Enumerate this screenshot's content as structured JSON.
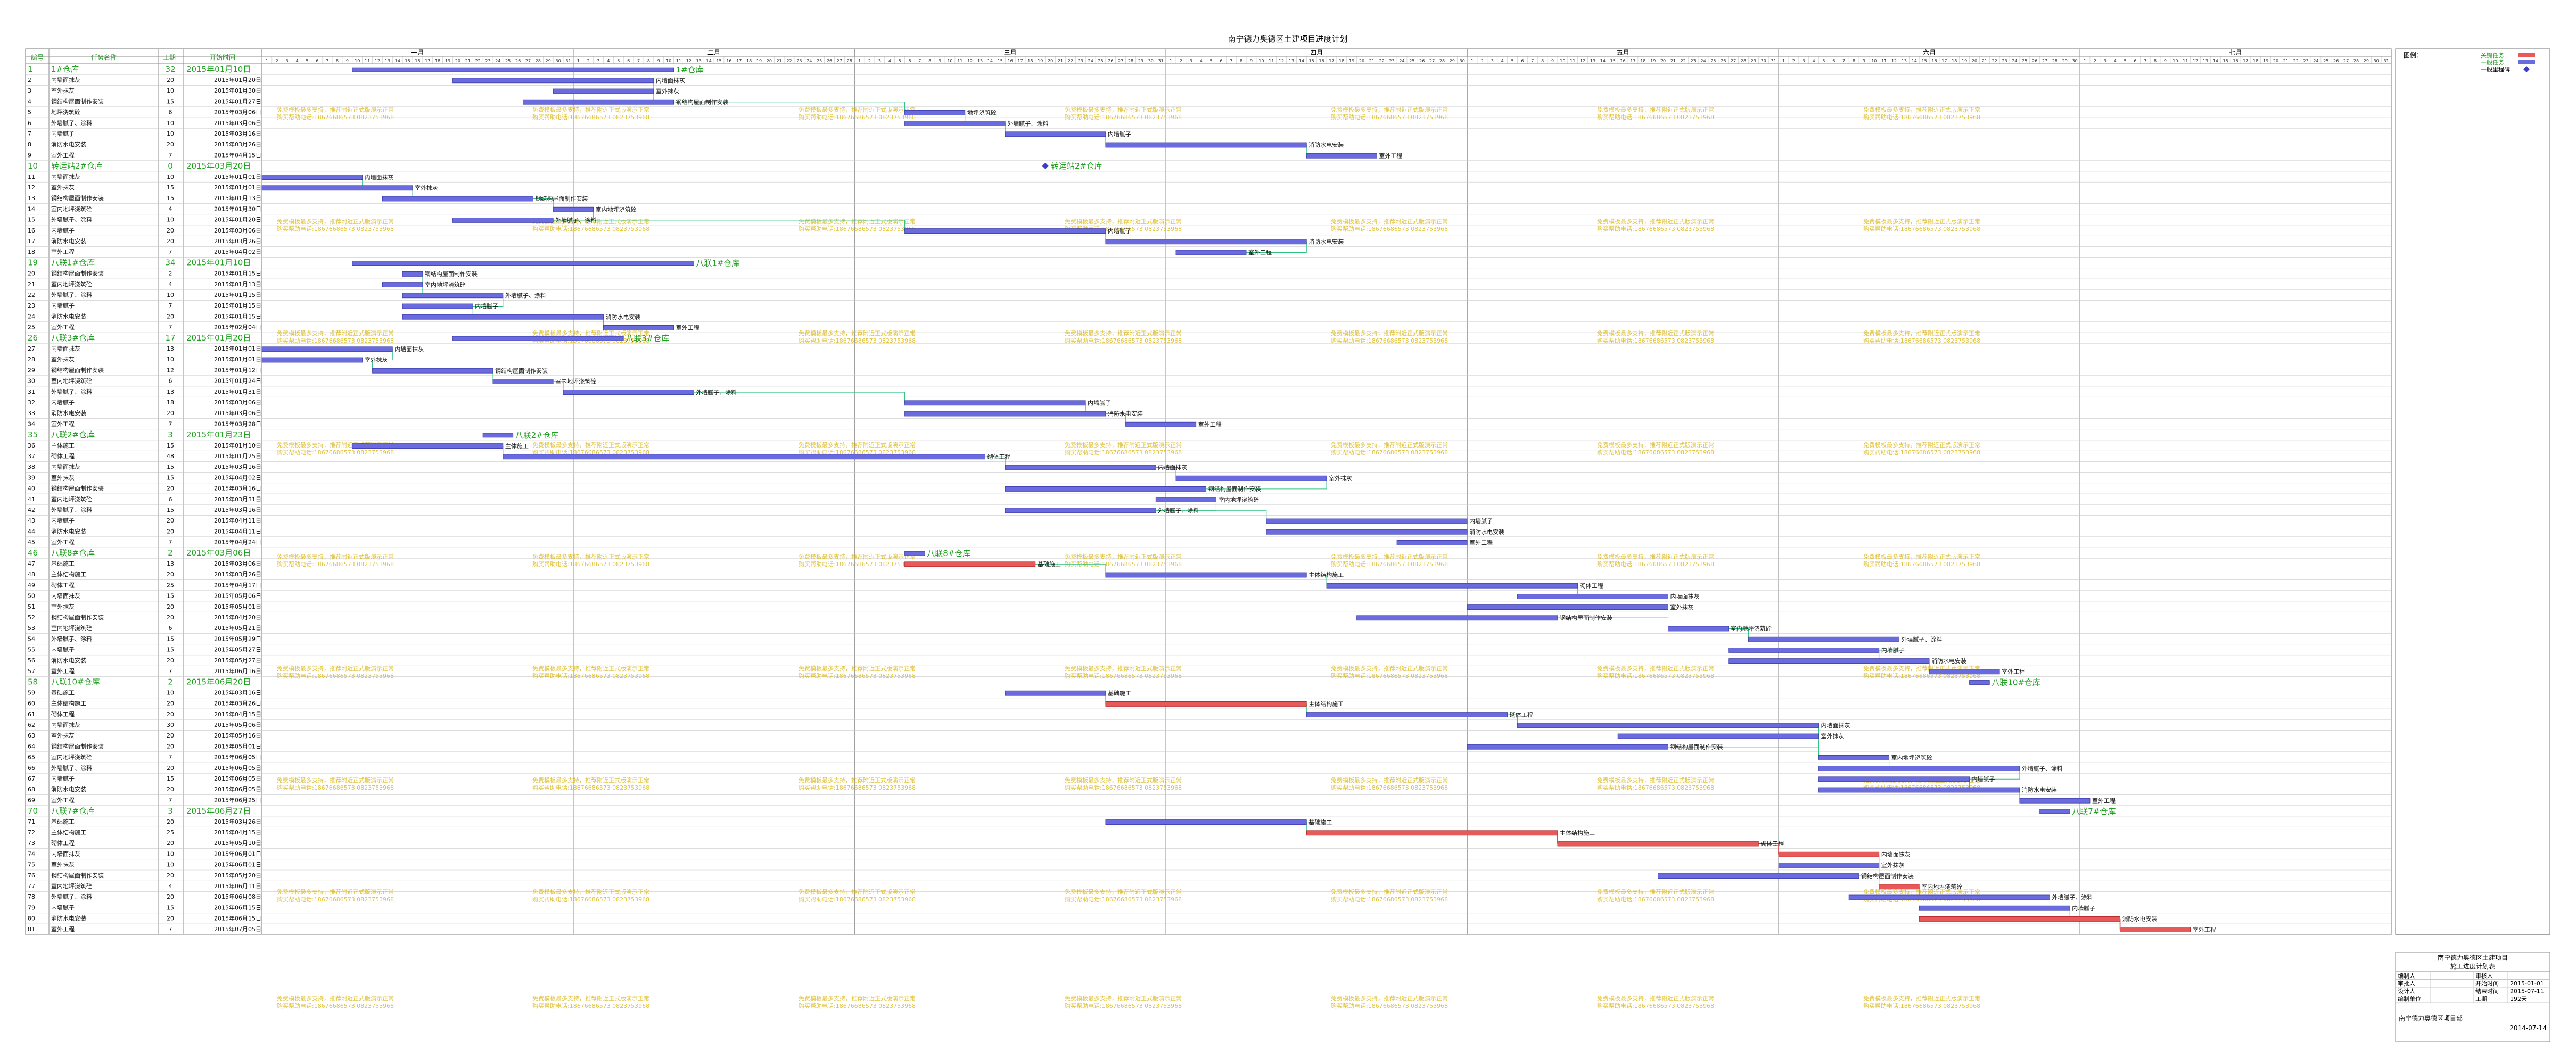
{
  "title": "南宁德力奥德区土建项目进度计划",
  "columns": {
    "id": "编号",
    "name": "任务名称",
    "dur": "工期",
    "start": "开始时间"
  },
  "months": [
    "一月",
    "二月",
    "三月",
    "四月",
    "五月",
    "六月",
    "七月"
  ],
  "month_days": [
    31,
    28,
    31,
    30,
    31,
    30,
    31
  ],
  "legend": {
    "label": "图例：",
    "items": [
      {
        "name": "关键任务",
        "color": "#e85a5a"
      },
      {
        "name": "一般任务",
        "color": "#6b6be0"
      },
      {
        "name": "一般里程碑",
        "color": "#3b3bd0"
      }
    ]
  },
  "watermark_lines": [
    "免费模板最多支持，推荐附近正式版演示正常",
    "购买帮助电话:18676686573 0823753968"
  ],
  "colors": {
    "grid": "#8a8a8a",
    "row_line": "#c8c8c8",
    "summary_text": "#22a022",
    "task_text": "#111111",
    "normal_bar": "#6b6be0",
    "critical_bar": "#e85a5a",
    "link": "#30c080",
    "critical_link": "#d03030",
    "watermark": "#d8b000"
  },
  "tasks": [
    {
      "id": "1",
      "name": "1#仓库",
      "dur": "32",
      "start": "2015年01月10日",
      "summary": true,
      "bs": "01-10",
      "be": "02-10",
      "label": "1#仓库",
      "crit": false
    },
    {
      "id": "2",
      "name": "内墙面抹灰",
      "dur": "20",
      "start": "2015年01月20日",
      "summary": false,
      "bs": "01-20",
      "be": "02-08",
      "label": "内墙面抹灰",
      "crit": false
    },
    {
      "id": "3",
      "name": "室外抹灰",
      "dur": "10",
      "start": "2015年01月30日",
      "summary": false,
      "bs": "01-30",
      "be": "02-08",
      "label": "室外抹灰",
      "crit": false
    },
    {
      "id": "4",
      "name": "钢结构屋面制作安装",
      "dur": "15",
      "start": "2015年01月27日",
      "summary": false,
      "bs": "01-27",
      "be": "02-10",
      "label": "钢结构屋面制作安装",
      "crit": false
    },
    {
      "id": "5",
      "name": "地坪浇筑砼",
      "dur": "6",
      "start": "2015年03月06日",
      "summary": false,
      "bs": "03-06",
      "be": "03-11",
      "label": "地坪浇筑砼",
      "crit": false
    },
    {
      "id": "6",
      "name": "外墙腻子、涂料",
      "dur": "10",
      "start": "2015年03月06日",
      "summary": false,
      "bs": "03-06",
      "be": "03-15",
      "label": "外墙腻子、涂料",
      "crit": false
    },
    {
      "id": "7",
      "name": "内墙腻子",
      "dur": "10",
      "start": "2015年03月16日",
      "summary": false,
      "bs": "03-16",
      "be": "03-25",
      "label": "内墙腻子",
      "crit": false
    },
    {
      "id": "8",
      "name": "消防水电安装",
      "dur": "20",
      "start": "2015年03月26日",
      "summary": false,
      "bs": "03-26",
      "be": "04-14",
      "label": "消防水电安装",
      "crit": false
    },
    {
      "id": "9",
      "name": "室外工程",
      "dur": "7",
      "start": "2015年04月15日",
      "summary": false,
      "bs": "04-15",
      "be": "04-21",
      "label": "室外工程",
      "crit": false
    },
    {
      "id": "10",
      "name": "转运站2#仓库",
      "dur": "0",
      "start": "2015年03月20日",
      "summary": true,
      "bs": "03-20",
      "be": "03-20",
      "label": "转运站2#仓库",
      "crit": false
    },
    {
      "id": "11",
      "name": "内墙面抹灰",
      "dur": "10",
      "start": "2015年01月01日",
      "summary": false,
      "bs": "01-01",
      "be": "01-10",
      "label": "内墙面抹灰",
      "crit": false
    },
    {
      "id": "12",
      "name": "室外抹灰",
      "dur": "15",
      "start": "2015年01月01日",
      "summary": false,
      "bs": "01-01",
      "be": "01-15",
      "label": "室外抹灰",
      "crit": false
    },
    {
      "id": "13",
      "name": "钢结构屋面制作安装",
      "dur": "15",
      "start": "2015年01月13日",
      "summary": false,
      "bs": "01-13",
      "be": "01-27",
      "label": "钢结构屋面制作安装",
      "crit": false
    },
    {
      "id": "14",
      "name": "室内地坪浇筑砼",
      "dur": "4",
      "start": "2015年01月30日",
      "summary": false,
      "bs": "01-30",
      "be": "02-02",
      "label": "室内地坪浇筑砼",
      "crit": false
    },
    {
      "id": "15",
      "name": "外墙腻子、涂料",
      "dur": "10",
      "start": "2015年01月20日",
      "summary": false,
      "bs": "01-20",
      "be": "01-29",
      "label": "外墙腻子、涂料",
      "crit": false
    },
    {
      "id": "16",
      "name": "内墙腻子",
      "dur": "20",
      "start": "2015年03月06日",
      "summary": false,
      "bs": "03-06",
      "be": "03-25",
      "label": "内墙腻子",
      "crit": false
    },
    {
      "id": "17",
      "name": "消防水电安装",
      "dur": "20",
      "start": "2015年03月26日",
      "summary": false,
      "bs": "03-26",
      "be": "04-14",
      "label": "消防水电安装",
      "crit": false
    },
    {
      "id": "18",
      "name": "室外工程",
      "dur": "7",
      "start": "2015年04月02日",
      "summary": false,
      "bs": "04-02",
      "be": "04-08",
      "label": "室外工程",
      "crit": false
    },
    {
      "id": "19",
      "name": "八联1#仓库",
      "dur": "34",
      "start": "2015年01月10日",
      "summary": true,
      "bs": "01-10",
      "be": "02-12",
      "label": "八联1#仓库",
      "crit": false
    },
    {
      "id": "20",
      "name": "钢结构屋面制作安装",
      "dur": "2",
      "start": "2015年01月15日",
      "summary": false,
      "bs": "01-15",
      "be": "01-16",
      "label": "钢结构屋面制作安装",
      "crit": false
    },
    {
      "id": "21",
      "name": "室内地坪浇筑砼",
      "dur": "4",
      "start": "2015年01月13日",
      "summary": false,
      "bs": "01-13",
      "be": "01-16",
      "label": "室内地坪浇筑砼",
      "crit": false
    },
    {
      "id": "22",
      "name": "外墙腻子、涂料",
      "dur": "10",
      "start": "2015年01月15日",
      "summary": false,
      "bs": "01-15",
      "be": "01-24",
      "label": "外墙腻子、涂料",
      "crit": false
    },
    {
      "id": "23",
      "name": "内墙腻子",
      "dur": "7",
      "start": "2015年01月15日",
      "summary": false,
      "bs": "01-15",
      "be": "01-21",
      "label": "内墙腻子",
      "crit": false
    },
    {
      "id": "24",
      "name": "消防水电安装",
      "dur": "20",
      "start": "2015年01月15日",
      "summary": false,
      "bs": "01-15",
      "be": "02-03",
      "label": "消防水电安装",
      "crit": false
    },
    {
      "id": "25",
      "name": "室外工程",
      "dur": "7",
      "start": "2015年02月04日",
      "summary": false,
      "bs": "02-04",
      "be": "02-10",
      "label": "室外工程",
      "crit": false
    },
    {
      "id": "26",
      "name": "八联3#仓库",
      "dur": "17",
      "start": "2015年01月20日",
      "summary": true,
      "bs": "01-20",
      "be": "02-05",
      "label": "八联3#仓库",
      "crit": false
    },
    {
      "id": "27",
      "name": "内墙面抹灰",
      "dur": "13",
      "start": "2015年01月01日",
      "summary": false,
      "bs": "01-01",
      "be": "01-13",
      "label": "内墙面抹灰",
      "crit": false
    },
    {
      "id": "28",
      "name": "室外抹灰",
      "dur": "10",
      "start": "2015年01月01日",
      "summary": false,
      "bs": "01-01",
      "be": "01-10",
      "label": "室外抹灰",
      "crit": false
    },
    {
      "id": "29",
      "name": "钢结构屋面制作安装",
      "dur": "12",
      "start": "2015年01月12日",
      "summary": false,
      "bs": "01-12",
      "be": "01-23",
      "label": "钢结构屋面制作安装",
      "crit": false
    },
    {
      "id": "30",
      "name": "室内地坪浇筑砼",
      "dur": "6",
      "start": "2015年01月24日",
      "summary": false,
      "bs": "01-24",
      "be": "01-29",
      "label": "室内地坪浇筑砼",
      "crit": false
    },
    {
      "id": "31",
      "name": "外墙腻子、涂料",
      "dur": "13",
      "start": "2015年01月31日",
      "summary": false,
      "bs": "01-31",
      "be": "02-12",
      "label": "外墙腻子、涂料",
      "crit": false
    },
    {
      "id": "32",
      "name": "内墙腻子",
      "dur": "18",
      "start": "2015年03月06日",
      "summary": false,
      "bs": "03-06",
      "be": "03-23",
      "label": "内墙腻子",
      "crit": false
    },
    {
      "id": "33",
      "name": "消防水电安装",
      "dur": "20",
      "start": "2015年03月06日",
      "summary": false,
      "bs": "03-06",
      "be": "03-25",
      "label": "消防水电安装",
      "crit": false
    },
    {
      "id": "34",
      "name": "室外工程",
      "dur": "7",
      "start": "2015年03月28日",
      "summary": false,
      "bs": "03-28",
      "be": "04-03",
      "label": "室外工程",
      "crit": false
    },
    {
      "id": "35",
      "name": "八联2#仓库",
      "dur": "3",
      "start": "2015年01月23日",
      "summary": true,
      "bs": "01-23",
      "be": "01-25",
      "label": "八联2#仓库",
      "crit": false
    },
    {
      "id": "36",
      "name": "主体施工",
      "dur": "15",
      "start": "2015年01月10日",
      "summary": false,
      "bs": "01-10",
      "be": "01-24",
      "label": "主体施工",
      "crit": false
    },
    {
      "id": "37",
      "name": "砌体工程",
      "dur": "48",
      "start": "2015年01月25日",
      "summary": false,
      "bs": "01-25",
      "be": "03-13",
      "label": "砌体工程",
      "crit": false
    },
    {
      "id": "38",
      "name": "内墙面抹灰",
      "dur": "15",
      "start": "2015年03月16日",
      "summary": false,
      "bs": "03-16",
      "be": "03-30",
      "label": "内墙面抹灰",
      "crit": false
    },
    {
      "id": "39",
      "name": "室外抹灰",
      "dur": "15",
      "start": "2015年04月02日",
      "summary": false,
      "bs": "04-02",
      "be": "04-16",
      "label": "室外抹灰",
      "crit": false
    },
    {
      "id": "40",
      "name": "钢结构屋面制作安装",
      "dur": "20",
      "start": "2015年03月16日",
      "summary": false,
      "bs": "03-16",
      "be": "04-04",
      "label": "钢结构屋面制作安装",
      "crit": false
    },
    {
      "id": "41",
      "name": "室内地坪浇筑砼",
      "dur": "6",
      "start": "2015年03月31日",
      "summary": false,
      "bs": "03-31",
      "be": "04-05",
      "label": "室内地坪浇筑砼",
      "crit": false
    },
    {
      "id": "42",
      "name": "外墙腻子、涂料",
      "dur": "15",
      "start": "2015年03月16日",
      "summary": false,
      "bs": "03-16",
      "be": "03-30",
      "label": "外墙腻子、涂料",
      "crit": false
    },
    {
      "id": "43",
      "name": "内墙腻子",
      "dur": "20",
      "start": "2015年04月11日",
      "summary": false,
      "bs": "04-11",
      "be": "04-30",
      "label": "内墙腻子",
      "crit": false
    },
    {
      "id": "44",
      "name": "消防水电安装",
      "dur": "20",
      "start": "2015年04月11日",
      "summary": false,
      "bs": "04-11",
      "be": "04-30",
      "label": "消防水电安装",
      "crit": false
    },
    {
      "id": "45",
      "name": "室外工程",
      "dur": "7",
      "start": "2015年04月24日",
      "summary": false,
      "bs": "04-24",
      "be": "04-30",
      "label": "室外工程",
      "crit": false
    },
    {
      "id": "46",
      "name": "八联8#仓库",
      "dur": "2",
      "start": "2015年03月06日",
      "summary": true,
      "bs": "03-06",
      "be": "03-07",
      "label": "八联8#仓库",
      "crit": false
    },
    {
      "id": "47",
      "name": "基础施工",
      "dur": "13",
      "start": "2015年03月06日",
      "summary": false,
      "bs": "03-06",
      "be": "03-18",
      "label": "基础施工",
      "crit": true
    },
    {
      "id": "48",
      "name": "主体结构施工",
      "dur": "20",
      "start": "2015年03月26日",
      "summary": false,
      "bs": "03-26",
      "be": "04-14",
      "label": "主体结构施工",
      "crit": false
    },
    {
      "id": "49",
      "name": "砌体工程",
      "dur": "25",
      "start": "2015年04月17日",
      "summary": false,
      "bs": "04-17",
      "be": "05-11",
      "label": "砌体工程",
      "crit": false
    },
    {
      "id": "50",
      "name": "内墙面抹灰",
      "dur": "15",
      "start": "2015年05月06日",
      "summary": false,
      "bs": "05-06",
      "be": "05-20",
      "label": "内墙面抹灰",
      "crit": false
    },
    {
      "id": "51",
      "name": "室外抹灰",
      "dur": "20",
      "start": "2015年05月01日",
      "summary": false,
      "bs": "05-01",
      "be": "05-20",
      "label": "室外抹灰",
      "crit": false
    },
    {
      "id": "52",
      "name": "钢结构屋面制作安装",
      "dur": "20",
      "start": "2015年04月20日",
      "summary": false,
      "bs": "04-20",
      "be": "05-09",
      "label": "钢结构屋面制作安装",
      "crit": false
    },
    {
      "id": "53",
      "name": "室内地坪浇筑砼",
      "dur": "6",
      "start": "2015年05月21日",
      "summary": false,
      "bs": "05-21",
      "be": "05-26",
      "label": "室内地坪浇筑砼",
      "crit": false
    },
    {
      "id": "54",
      "name": "外墙腻子、涂料",
      "dur": "15",
      "start": "2015年05月29日",
      "summary": false,
      "bs": "05-29",
      "be": "06-12",
      "label": "外墙腻子、涂料",
      "crit": false
    },
    {
      "id": "55",
      "name": "内墙腻子",
      "dur": "15",
      "start": "2015年05月27日",
      "summary": false,
      "bs": "05-27",
      "be": "06-10",
      "label": "内墙腻子",
      "crit": false
    },
    {
      "id": "56",
      "name": "消防水电安装",
      "dur": "20",
      "start": "2015年05月27日",
      "summary": false,
      "bs": "05-27",
      "be": "06-15",
      "label": "消防水电安装",
      "crit": false
    },
    {
      "id": "57",
      "name": "室外工程",
      "dur": "7",
      "start": "2015年06月16日",
      "summary": false,
      "bs": "06-16",
      "be": "06-22",
      "label": "室外工程",
      "crit": false
    },
    {
      "id": "58",
      "name": "八联10#仓库",
      "dur": "2",
      "start": "2015年06月20日",
      "summary": true,
      "bs": "06-20",
      "be": "06-21",
      "label": "八联10#仓库",
      "crit": false
    },
    {
      "id": "59",
      "name": "基础施工",
      "dur": "10",
      "start": "2015年03月16日",
      "summary": false,
      "bs": "03-16",
      "be": "03-25",
      "label": "基础施工",
      "crit": false
    },
    {
      "id": "60",
      "name": "主体结构施工",
      "dur": "20",
      "start": "2015年03月26日",
      "summary": false,
      "bs": "03-26",
      "be": "04-14",
      "label": "主体结构施工",
      "crit": true
    },
    {
      "id": "61",
      "name": "砌体工程",
      "dur": "20",
      "start": "2015年04月15日",
      "summary": false,
      "bs": "04-15",
      "be": "05-04",
      "label": "砌体工程",
      "crit": false
    },
    {
      "id": "62",
      "name": "内墙面抹灰",
      "dur": "30",
      "start": "2015年05月06日",
      "summary": false,
      "bs": "05-06",
      "be": "06-04",
      "label": "内墙面抹灰",
      "crit": false
    },
    {
      "id": "63",
      "name": "室外抹灰",
      "dur": "20",
      "start": "2015年05月16日",
      "summary": false,
      "bs": "05-16",
      "be": "06-04",
      "label": "室外抹灰",
      "crit": false
    },
    {
      "id": "64",
      "name": "钢结构屋面制作安装",
      "dur": "20",
      "start": "2015年05月01日",
      "summary": false,
      "bs": "05-01",
      "be": "05-20",
      "label": "钢结构屋面制作安装",
      "crit": false
    },
    {
      "id": "65",
      "name": "室内地坪浇筑砼",
      "dur": "7",
      "start": "2015年06月05日",
      "summary": false,
      "bs": "06-05",
      "be": "06-11",
      "label": "室内地坪浇筑砼",
      "crit": false
    },
    {
      "id": "66",
      "name": "外墙腻子、涂料",
      "dur": "20",
      "start": "2015年06月05日",
      "summary": false,
      "bs": "06-05",
      "be": "06-24",
      "label": "外墙腻子、涂料",
      "crit": false
    },
    {
      "id": "67",
      "name": "内墙腻子",
      "dur": "15",
      "start": "2015年06月05日",
      "summary": false,
      "bs": "06-05",
      "be": "06-19",
      "label": "内墙腻子",
      "crit": false
    },
    {
      "id": "68",
      "name": "消防水电安装",
      "dur": "20",
      "start": "2015年06月05日",
      "summary": false,
      "bs": "06-05",
      "be": "06-24",
      "label": "消防水电安装",
      "crit": false
    },
    {
      "id": "69",
      "name": "室外工程",
      "dur": "7",
      "start": "2015年06月25日",
      "summary": false,
      "bs": "06-25",
      "be": "07-01",
      "label": "室外工程",
      "crit": false
    },
    {
      "id": "70",
      "name": "八联7#仓库",
      "dur": "3",
      "start": "2015年06月27日",
      "summary": true,
      "bs": "06-27",
      "be": "06-29",
      "label": "八联7#仓库",
      "crit": false
    },
    {
      "id": "71",
      "name": "基础施工",
      "dur": "20",
      "start": "2015年03月26日",
      "summary": false,
      "bs": "03-26",
      "be": "04-14",
      "label": "基础施工",
      "crit": false
    },
    {
      "id": "72",
      "name": "主体结构施工",
      "dur": "25",
      "start": "2015年04月15日",
      "summary": false,
      "bs": "04-15",
      "be": "05-09",
      "label": "主体结构施工",
      "crit": true
    },
    {
      "id": "73",
      "name": "砌体工程",
      "dur": "20",
      "start": "2015年05月10日",
      "summary": false,
      "bs": "05-10",
      "be": "05-29",
      "label": "砌体工程",
      "crit": true
    },
    {
      "id": "74",
      "name": "内墙面抹灰",
      "dur": "10",
      "start": "2015年06月01日",
      "summary": false,
      "bs": "06-01",
      "be": "06-10",
      "label": "内墙面抹灰",
      "crit": true
    },
    {
      "id": "75",
      "name": "室外抹灰",
      "dur": "10",
      "start": "2015年06月01日",
      "summary": false,
      "bs": "06-01",
      "be": "06-10",
      "label": "室外抹灰",
      "crit": false
    },
    {
      "id": "76",
      "name": "钢结构屋面制作安装",
      "dur": "20",
      "start": "2015年05月20日",
      "summary": false,
      "bs": "05-20",
      "be": "06-08",
      "label": "钢结构屋面制作安装",
      "crit": false
    },
    {
      "id": "77",
      "name": "室内地坪浇筑砼",
      "dur": "4",
      "start": "2015年06月11日",
      "summary": false,
      "bs": "06-11",
      "be": "06-14",
      "label": "室内地坪浇筑砼",
      "crit": true
    },
    {
      "id": "78",
      "name": "外墙腻子、涂料",
      "dur": "20",
      "start": "2015年06月08日",
      "summary": false,
      "bs": "06-08",
      "be": "06-27",
      "label": "外墙腻子、涂料",
      "crit": false
    },
    {
      "id": "79",
      "name": "内墙腻子",
      "dur": "15",
      "start": "2015年06月15日",
      "summary": false,
      "bs": "06-15",
      "be": "06-29",
      "label": "内墙腻子",
      "crit": false
    },
    {
      "id": "80",
      "name": "消防水电安装",
      "dur": "20",
      "start": "2015年06月15日",
      "summary": false,
      "bs": "06-15",
      "be": "07-04",
      "label": "消防水电安装",
      "crit": true
    },
    {
      "id": "81",
      "name": "室外工程",
      "dur": "7",
      "start": "2015年07月05日",
      "summary": false,
      "bs": "07-05",
      "be": "07-11",
      "label": "室外工程",
      "crit": true
    }
  ],
  "info_box": {
    "project": "南宁德力奥德区土建项目",
    "subtitle": "施工进度计划表",
    "rows": [
      [
        "编制人",
        "",
        "审核人",
        ""
      ],
      [
        "审批人",
        "",
        "开始时间",
        "2015-01-01"
      ],
      [
        "设计人",
        "",
        "结束时间",
        "2015-07-11"
      ],
      [
        "编制单位",
        "",
        "工期",
        "192天"
      ]
    ],
    "footer": "南宁德力奥德区项目部",
    "date": "2014-07-14"
  }
}
